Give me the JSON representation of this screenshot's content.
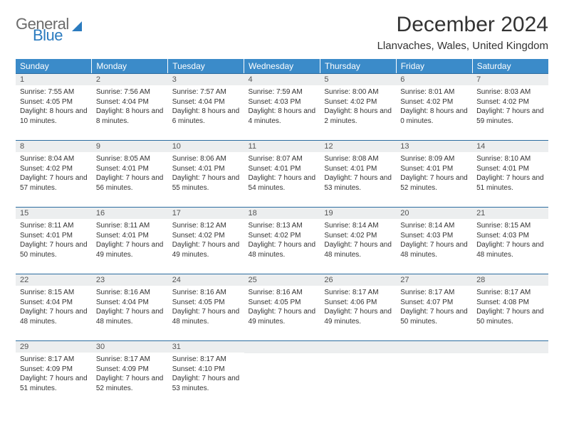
{
  "brand": {
    "part1": "General",
    "part2": "Blue"
  },
  "title": "December 2024",
  "location": "Llanvaches, Wales, United Kingdom",
  "colors": {
    "header_bg": "#3b8bc9",
    "header_text": "#ffffff",
    "daynum_bg": "#eceeef",
    "day_border": "#2b6ca0",
    "body_text": "#333333",
    "brand_gray": "#6b6b6b",
    "brand_blue": "#2b7bbf"
  },
  "weekdays": [
    "Sunday",
    "Monday",
    "Tuesday",
    "Wednesday",
    "Thursday",
    "Friday",
    "Saturday"
  ],
  "weeks": [
    [
      {
        "n": "1",
        "sr": "Sunrise: 7:55 AM",
        "ss": "Sunset: 4:05 PM",
        "dl": "Daylight: 8 hours and 10 minutes."
      },
      {
        "n": "2",
        "sr": "Sunrise: 7:56 AM",
        "ss": "Sunset: 4:04 PM",
        "dl": "Daylight: 8 hours and 8 minutes."
      },
      {
        "n": "3",
        "sr": "Sunrise: 7:57 AM",
        "ss": "Sunset: 4:04 PM",
        "dl": "Daylight: 8 hours and 6 minutes."
      },
      {
        "n": "4",
        "sr": "Sunrise: 7:59 AM",
        "ss": "Sunset: 4:03 PM",
        "dl": "Daylight: 8 hours and 4 minutes."
      },
      {
        "n": "5",
        "sr": "Sunrise: 8:00 AM",
        "ss": "Sunset: 4:02 PM",
        "dl": "Daylight: 8 hours and 2 minutes."
      },
      {
        "n": "6",
        "sr": "Sunrise: 8:01 AM",
        "ss": "Sunset: 4:02 PM",
        "dl": "Daylight: 8 hours and 0 minutes."
      },
      {
        "n": "7",
        "sr": "Sunrise: 8:03 AM",
        "ss": "Sunset: 4:02 PM",
        "dl": "Daylight: 7 hours and 59 minutes."
      }
    ],
    [
      {
        "n": "8",
        "sr": "Sunrise: 8:04 AM",
        "ss": "Sunset: 4:02 PM",
        "dl": "Daylight: 7 hours and 57 minutes."
      },
      {
        "n": "9",
        "sr": "Sunrise: 8:05 AM",
        "ss": "Sunset: 4:01 PM",
        "dl": "Daylight: 7 hours and 56 minutes."
      },
      {
        "n": "10",
        "sr": "Sunrise: 8:06 AM",
        "ss": "Sunset: 4:01 PM",
        "dl": "Daylight: 7 hours and 55 minutes."
      },
      {
        "n": "11",
        "sr": "Sunrise: 8:07 AM",
        "ss": "Sunset: 4:01 PM",
        "dl": "Daylight: 7 hours and 54 minutes."
      },
      {
        "n": "12",
        "sr": "Sunrise: 8:08 AM",
        "ss": "Sunset: 4:01 PM",
        "dl": "Daylight: 7 hours and 53 minutes."
      },
      {
        "n": "13",
        "sr": "Sunrise: 8:09 AM",
        "ss": "Sunset: 4:01 PM",
        "dl": "Daylight: 7 hours and 52 minutes."
      },
      {
        "n": "14",
        "sr": "Sunrise: 8:10 AM",
        "ss": "Sunset: 4:01 PM",
        "dl": "Daylight: 7 hours and 51 minutes."
      }
    ],
    [
      {
        "n": "15",
        "sr": "Sunrise: 8:11 AM",
        "ss": "Sunset: 4:01 PM",
        "dl": "Daylight: 7 hours and 50 minutes."
      },
      {
        "n": "16",
        "sr": "Sunrise: 8:11 AM",
        "ss": "Sunset: 4:01 PM",
        "dl": "Daylight: 7 hours and 49 minutes."
      },
      {
        "n": "17",
        "sr": "Sunrise: 8:12 AM",
        "ss": "Sunset: 4:02 PM",
        "dl": "Daylight: 7 hours and 49 minutes."
      },
      {
        "n": "18",
        "sr": "Sunrise: 8:13 AM",
        "ss": "Sunset: 4:02 PM",
        "dl": "Daylight: 7 hours and 48 minutes."
      },
      {
        "n": "19",
        "sr": "Sunrise: 8:14 AM",
        "ss": "Sunset: 4:02 PM",
        "dl": "Daylight: 7 hours and 48 minutes."
      },
      {
        "n": "20",
        "sr": "Sunrise: 8:14 AM",
        "ss": "Sunset: 4:03 PM",
        "dl": "Daylight: 7 hours and 48 minutes."
      },
      {
        "n": "21",
        "sr": "Sunrise: 8:15 AM",
        "ss": "Sunset: 4:03 PM",
        "dl": "Daylight: 7 hours and 48 minutes."
      }
    ],
    [
      {
        "n": "22",
        "sr": "Sunrise: 8:15 AM",
        "ss": "Sunset: 4:04 PM",
        "dl": "Daylight: 7 hours and 48 minutes."
      },
      {
        "n": "23",
        "sr": "Sunrise: 8:16 AM",
        "ss": "Sunset: 4:04 PM",
        "dl": "Daylight: 7 hours and 48 minutes."
      },
      {
        "n": "24",
        "sr": "Sunrise: 8:16 AM",
        "ss": "Sunset: 4:05 PM",
        "dl": "Daylight: 7 hours and 48 minutes."
      },
      {
        "n": "25",
        "sr": "Sunrise: 8:16 AM",
        "ss": "Sunset: 4:05 PM",
        "dl": "Daylight: 7 hours and 49 minutes."
      },
      {
        "n": "26",
        "sr": "Sunrise: 8:17 AM",
        "ss": "Sunset: 4:06 PM",
        "dl": "Daylight: 7 hours and 49 minutes."
      },
      {
        "n": "27",
        "sr": "Sunrise: 8:17 AM",
        "ss": "Sunset: 4:07 PM",
        "dl": "Daylight: 7 hours and 50 minutes."
      },
      {
        "n": "28",
        "sr": "Sunrise: 8:17 AM",
        "ss": "Sunset: 4:08 PM",
        "dl": "Daylight: 7 hours and 50 minutes."
      }
    ],
    [
      {
        "n": "29",
        "sr": "Sunrise: 8:17 AM",
        "ss": "Sunset: 4:09 PM",
        "dl": "Daylight: 7 hours and 51 minutes."
      },
      {
        "n": "30",
        "sr": "Sunrise: 8:17 AM",
        "ss": "Sunset: 4:09 PM",
        "dl": "Daylight: 7 hours and 52 minutes."
      },
      {
        "n": "31",
        "sr": "Sunrise: 8:17 AM",
        "ss": "Sunset: 4:10 PM",
        "dl": "Daylight: 7 hours and 53 minutes."
      },
      null,
      null,
      null,
      null
    ]
  ]
}
